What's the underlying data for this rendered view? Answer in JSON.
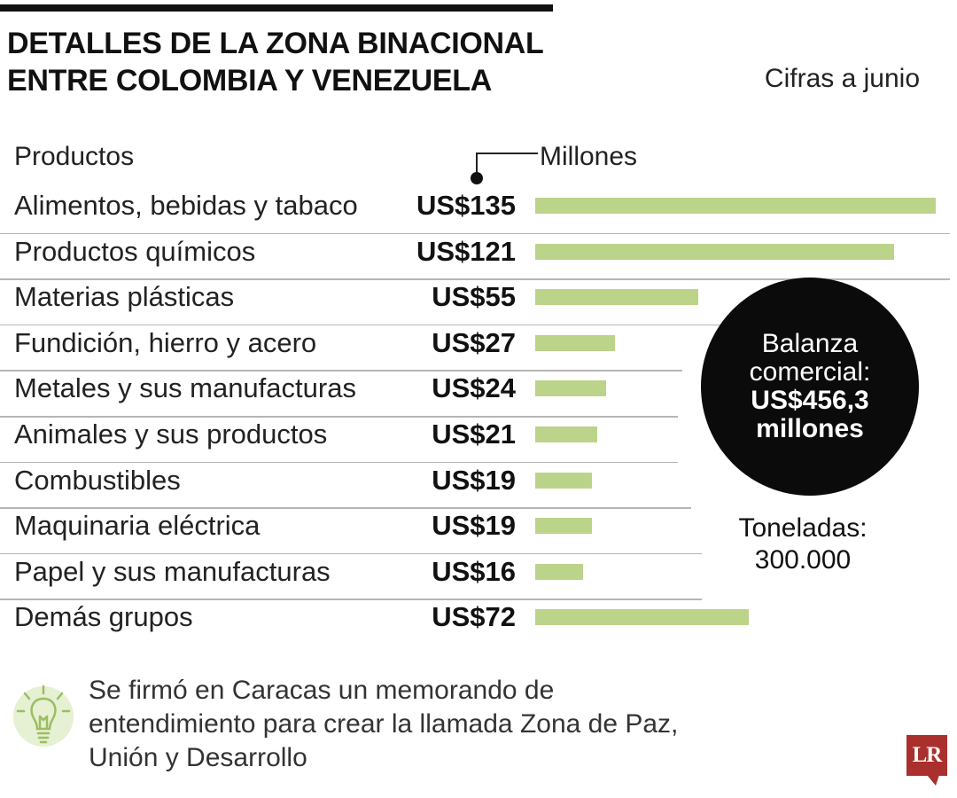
{
  "header": {
    "title_lines": [
      "DETALLES DE LA ZONA BINACIONAL",
      "ENTRE COLOMBIA Y VENEZUELA"
    ],
    "subtitle": "Cifras a junio"
  },
  "table": {
    "category_header": "Productos",
    "unit_label": "Millones"
  },
  "chart_data": {
    "type": "bar",
    "orientation": "horizontal",
    "categories": [
      "Alimentos, bebidas y tabaco",
      "Productos químicos",
      "Materias plásticas",
      "Fundición, hierro y acero",
      "Metales y sus manufacturas",
      "Animales y sus productos",
      "Combustibles",
      "Maquinaria eléctrica",
      "Papel y sus manufacturas",
      "Demás grupos"
    ],
    "values": [
      135,
      121,
      55,
      27,
      24,
      21,
      19,
      19,
      16,
      72
    ],
    "value_labels": [
      "US$135",
      "US$121",
      "US$55",
      "US$27",
      "US$24",
      "US$21",
      "US$19",
      "US$19",
      "US$16",
      "US$72"
    ],
    "xlim": [
      0,
      135
    ],
    "grid": false,
    "legend": "none",
    "bar_color": "#bcd38a"
  },
  "callout": {
    "line1": "Balanza",
    "line2": "comercial:",
    "line3": "US$456,3",
    "line4": "millones"
  },
  "tonnage": {
    "label": "Toneladas:",
    "value": "300.000"
  },
  "note": {
    "icon": "lightbulb-icon",
    "text": "Se firmó en Caracas un memorando de entendimiento para crear la llamada Zona de Paz, Unión y Desarrollo"
  },
  "logo": {
    "text": "LR",
    "color": "#a9302c"
  }
}
